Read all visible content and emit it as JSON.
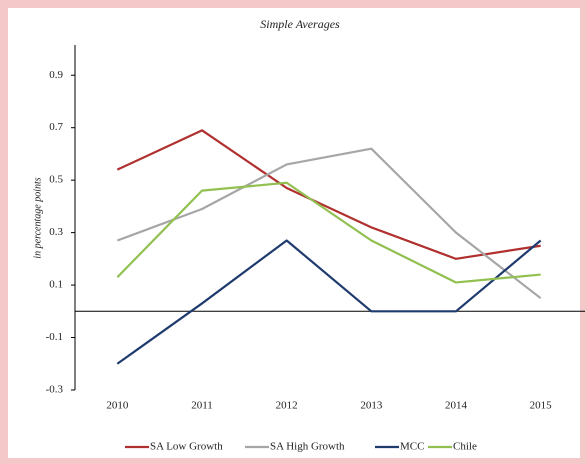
{
  "chart_data": {
    "type": "line",
    "title": "Simple Averages",
    "y_label": "in percentage points",
    "categories": [
      "2010",
      "2011",
      "2012",
      "2013",
      "2014",
      "2015"
    ],
    "series": [
      {
        "name": "SA Low Growth",
        "color": "#b0302f",
        "values": [
          0.54,
          0.69,
          0.47,
          0.32,
          0.2,
          0.25
        ]
      },
      {
        "name": "SA High Growth",
        "color": "#a6a6a6",
        "values": [
          0.27,
          0.39,
          0.56,
          0.62,
          0.3,
          0.05
        ]
      },
      {
        "name": "MCC",
        "color": "#1f3b6e",
        "values": [
          -0.2,
          0.03,
          0.27,
          0.0,
          0.0,
          0.27
        ]
      },
      {
        "name": "Chile",
        "color": "#92c050",
        "values": [
          0.13,
          0.46,
          0.49,
          0.27,
          0.11,
          0.14
        ]
      }
    ],
    "ylim": [
      -0.3,
      1.0
    ],
    "yticks": [
      -0.3,
      -0.1,
      0.1,
      0.3,
      0.5,
      0.7,
      0.9
    ],
    "grid": false,
    "legend": "bottom"
  }
}
